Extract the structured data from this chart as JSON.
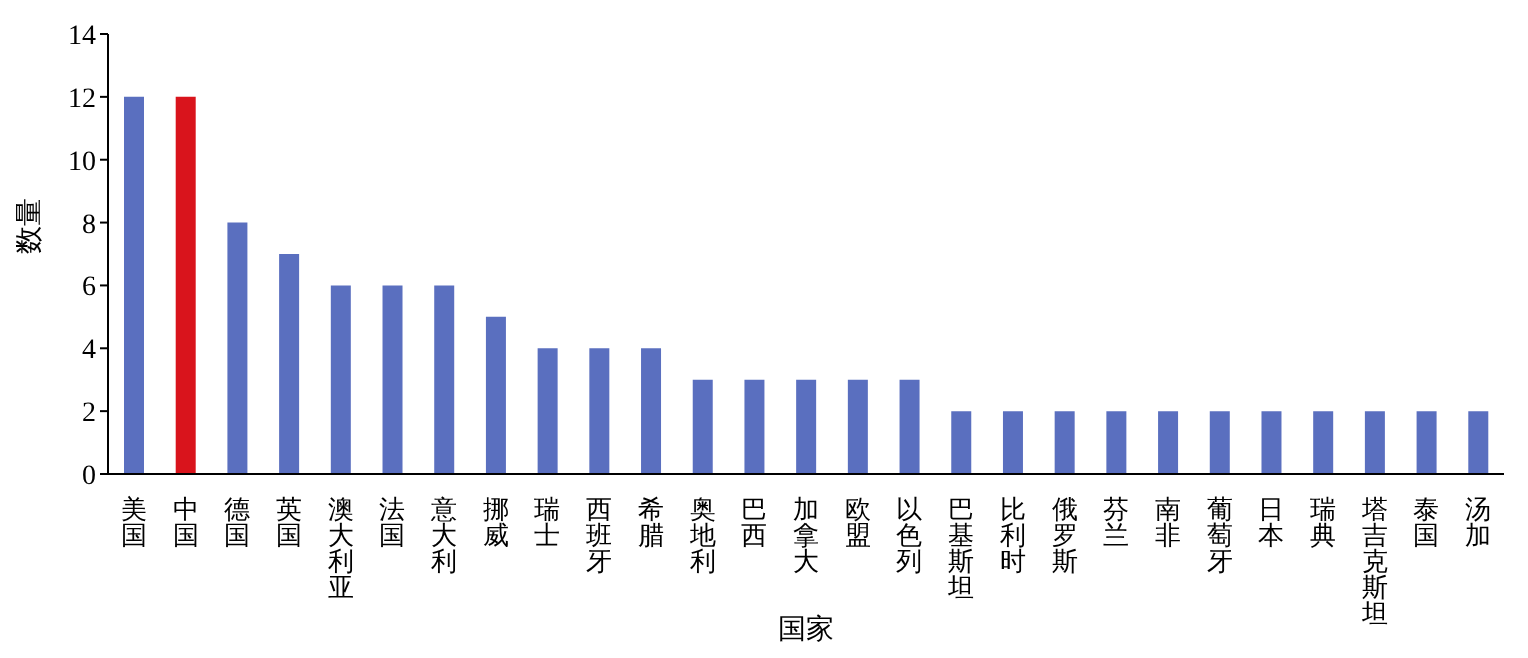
{
  "chart_data": {
    "type": "bar",
    "xlabel": "国家",
    "ylabel": "数量",
    "categories": [
      "美国",
      "中国",
      "德国",
      "英国",
      "澳大利亚",
      "法国",
      "意大利",
      "挪威",
      "瑞士",
      "西班牙",
      "希腊",
      "奥地利",
      "巴西",
      "加拿大",
      "欧盟",
      "以色列",
      "巴基斯坦",
      "比利时",
      "俄罗斯",
      "芬兰",
      "南非",
      "葡萄牙",
      "日本",
      "瑞典",
      "塔吉克斯坦",
      "泰国",
      "汤加"
    ],
    "values": [
      12,
      12,
      8,
      7,
      6,
      6,
      6,
      5,
      4,
      4,
      4,
      3,
      3,
      3,
      3,
      3,
      2,
      2,
      2,
      2,
      2,
      2,
      2,
      2,
      2,
      2,
      2
    ],
    "colors": [
      "#5a6fbf",
      "#d9141c",
      "#5a6fbf",
      "#5a6fbf",
      "#5a6fbf",
      "#5a6fbf",
      "#5a6fbf",
      "#5a6fbf",
      "#5a6fbf",
      "#5a6fbf",
      "#5a6fbf",
      "#5a6fbf",
      "#5a6fbf",
      "#5a6fbf",
      "#5a6fbf",
      "#5a6fbf",
      "#5a6fbf",
      "#5a6fbf",
      "#5a6fbf",
      "#5a6fbf",
      "#5a6fbf",
      "#5a6fbf",
      "#5a6fbf",
      "#5a6fbf",
      "#5a6fbf",
      "#5a6fbf",
      "#5a6fbf"
    ],
    "ylim": [
      0,
      14
    ],
    "yticks": [
      0,
      2,
      4,
      6,
      8,
      10,
      12,
      14
    ],
    "grid": false,
    "legend": false
  }
}
